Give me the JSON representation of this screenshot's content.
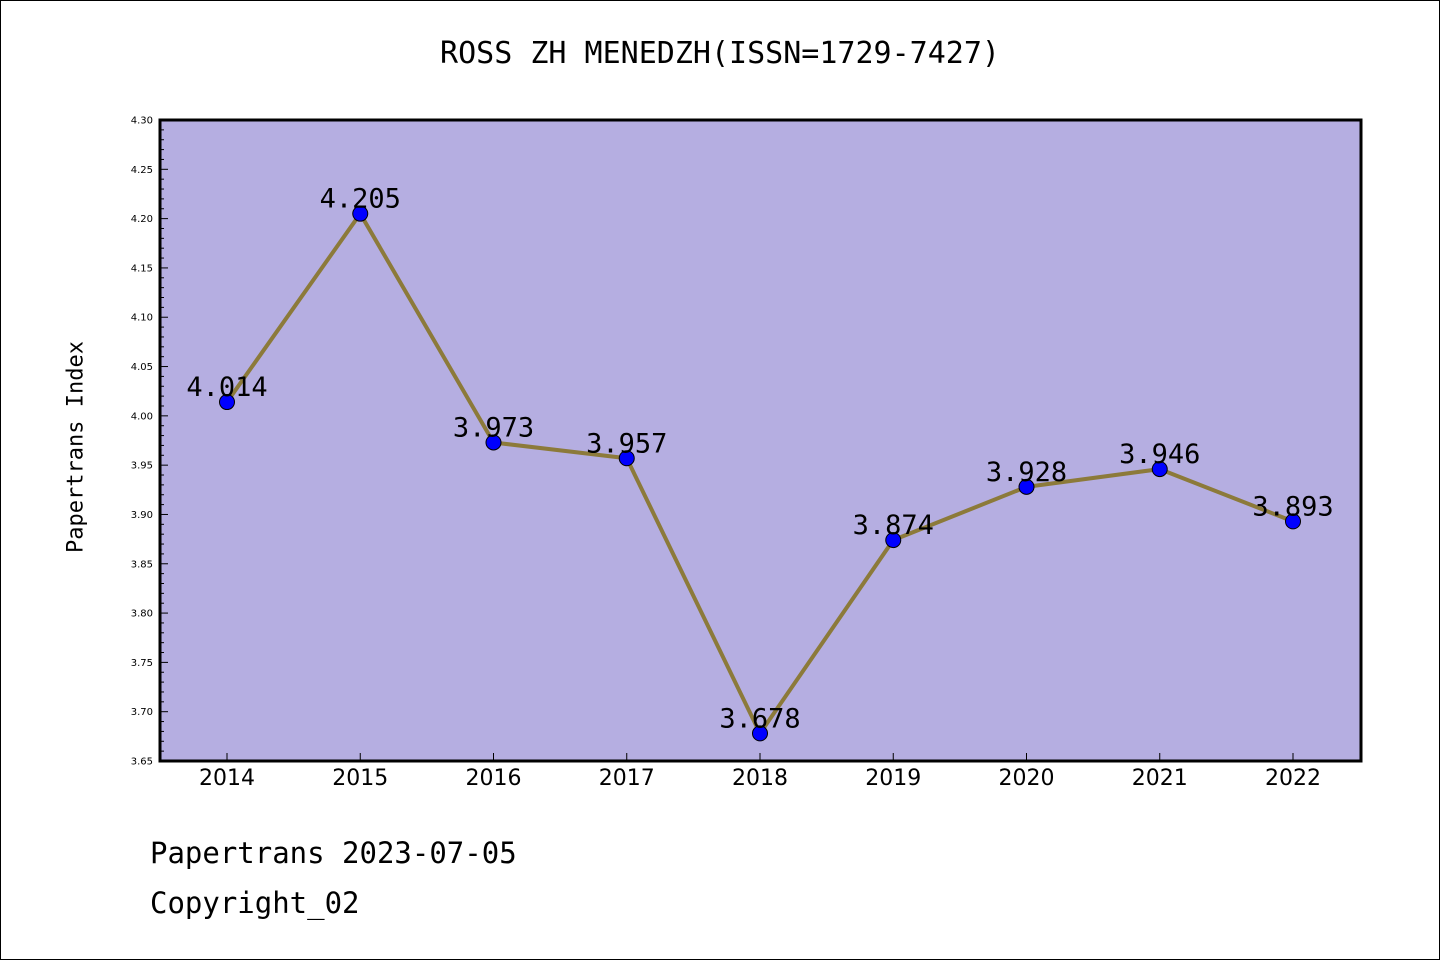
{
  "chart_data": {
    "type": "line",
    "title": "ROSS ZH MENEDZH(ISSN=1729-7427)",
    "xlabel": "",
    "ylabel": "Papertrans Index",
    "categories": [
      "2014",
      "2015",
      "2016",
      "2017",
      "2018",
      "2019",
      "2020",
      "2021",
      "2022"
    ],
    "series": [
      {
        "values": [
          4.014,
          4.205,
          3.973,
          3.957,
          3.678,
          3.874,
          3.928,
          3.946,
          3.893
        ],
        "labels": [
          "4.014",
          "4.205",
          "3.973",
          "3.957",
          "3.678",
          "3.874",
          "3.928",
          "3.946",
          "3.893"
        ]
      }
    ],
    "ylim": [
      3.65,
      4.3
    ],
    "yticks": [
      "3.65",
      "3.70",
      "3.75",
      "3.80",
      "3.85",
      "3.90",
      "3.95",
      "4.00",
      "4.05",
      "4.10",
      "4.15",
      "4.20",
      "4.25",
      "4.30"
    ],
    "grid": false,
    "colors": {
      "plot_background": "#b5aee1",
      "line": "#8c7a3a",
      "marker": "#0000ff"
    }
  },
  "footer": {
    "line1": "Papertrans 2023-07-05",
    "line2": "Copyright_02"
  }
}
